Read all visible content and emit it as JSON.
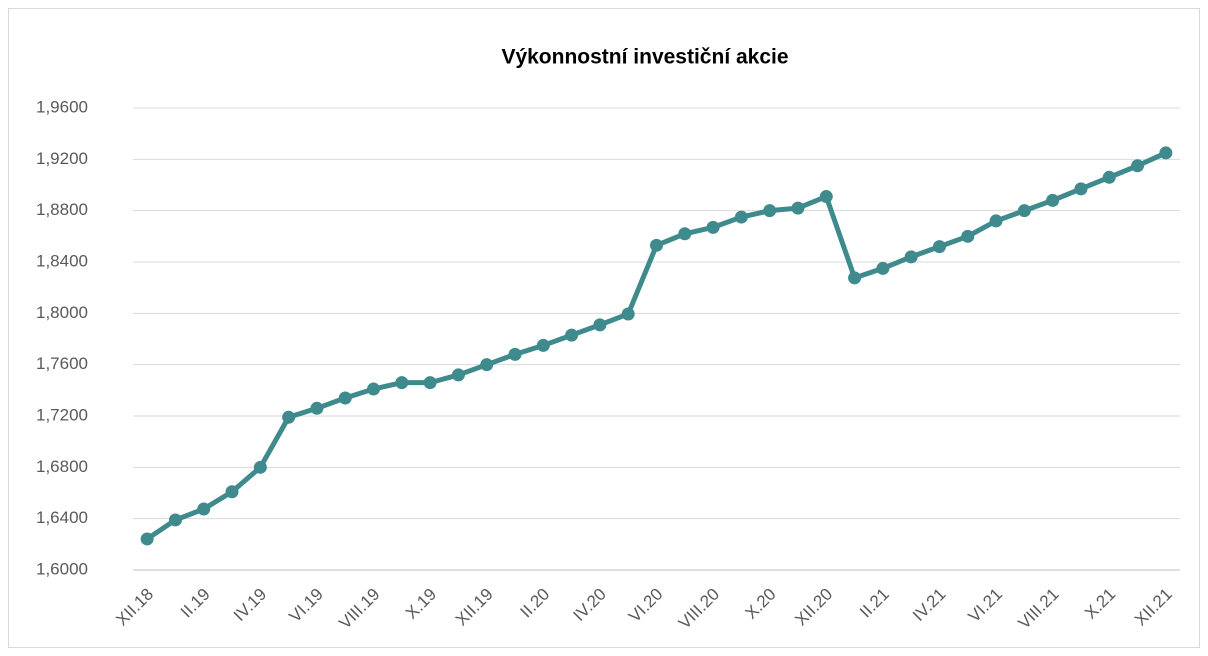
{
  "chart_data": {
    "type": "line",
    "title": "Výkonnostní investiční akcie",
    "categories": [
      "XII.18",
      null,
      "II.19",
      null,
      "IV.19",
      null,
      "VI.19",
      null,
      "VIII.19",
      null,
      "X.19",
      null,
      "XII.19",
      null,
      "II.20",
      null,
      "IV.20",
      null,
      "VI.20",
      null,
      "VIII.20",
      null,
      "X.20",
      null,
      "XII.20",
      null,
      "II.21",
      null,
      "IV.21",
      null,
      "VI.21",
      null,
      "VIII.21",
      null,
      "X.21",
      null,
      "XII.21"
    ],
    "values": [
      1.6242,
      1.639,
      1.6475,
      1.661,
      1.68,
      1.719,
      1.726,
      1.734,
      1.741,
      1.746,
      1.746,
      1.752,
      1.76,
      1.768,
      1.775,
      1.783,
      1.791,
      1.7995,
      1.853,
      1.862,
      1.867,
      1.875,
      1.88,
      1.882,
      1.891,
      1.8276,
      1.835,
      1.844,
      1.852,
      1.86,
      1.872,
      1.88,
      1.888,
      1.897,
      1.906,
      1.915,
      1.925
    ],
    "color": "#3f8a8d",
    "ylim": [
      1.6,
      1.96
    ],
    "yticks": [
      {
        "value": 1.6,
        "label": "1,6000"
      },
      {
        "value": 1.64,
        "label": "1,6400"
      },
      {
        "value": 1.68,
        "label": "1,6800"
      },
      {
        "value": 1.72,
        "label": "1,7200"
      },
      {
        "value": 1.76,
        "label": "1,7600"
      },
      {
        "value": 1.8,
        "label": "1,8000"
      },
      {
        "value": 1.84,
        "label": "1,8400"
      },
      {
        "value": 1.88,
        "label": "1,8800"
      },
      {
        "value": 1.92,
        "label": "1,9200"
      },
      {
        "value": 1.96,
        "label": "1,9600"
      }
    ],
    "grid": true
  }
}
